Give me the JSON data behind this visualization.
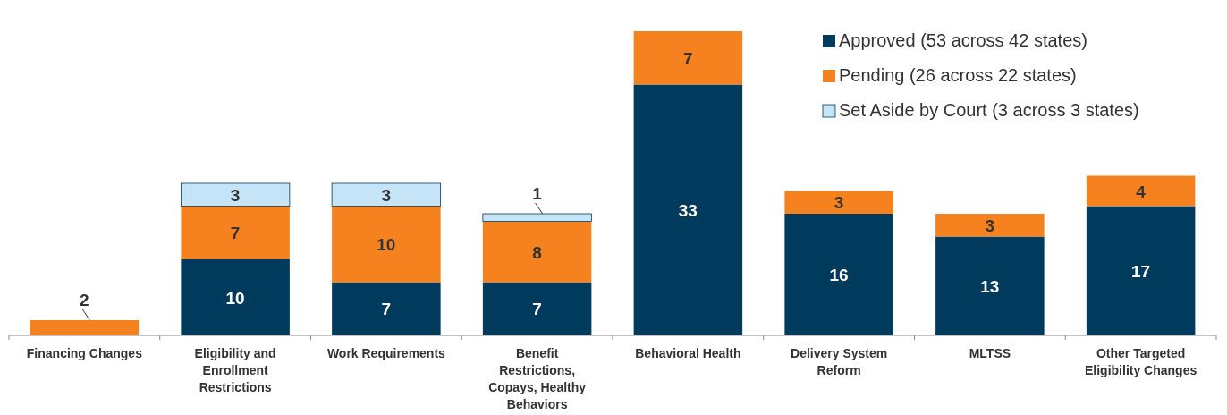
{
  "chart_data": {
    "type": "bar",
    "stacked": true,
    "data_labels": true,
    "legend": "top right",
    "categories": [
      "Financing Changes",
      "Eligibility and Enrollment Restrictions",
      "Work Requirements",
      "Benefit Restrictions, Copays, Healthy Behaviors",
      "Behavioral Health",
      "Delivery System Reform",
      "MLTSS",
      "Other Targeted Eligibility Changes"
    ],
    "series": [
      {
        "name": "Approved (53 across 42 states)",
        "color": "#003a5d",
        "values": [
          null,
          10,
          7,
          7,
          33,
          16,
          13,
          17
        ]
      },
      {
        "name": "Pending (26 across 22 states)",
        "color": "#f5821f",
        "values": [
          2,
          7,
          10,
          8,
          7,
          3,
          3,
          4
        ]
      },
      {
        "name": "Set Aside by Court (3 across 3 states)",
        "color": "#c5e4f7",
        "values": [
          null,
          3,
          3,
          1,
          null,
          null,
          null,
          null
        ]
      }
    ]
  }
}
